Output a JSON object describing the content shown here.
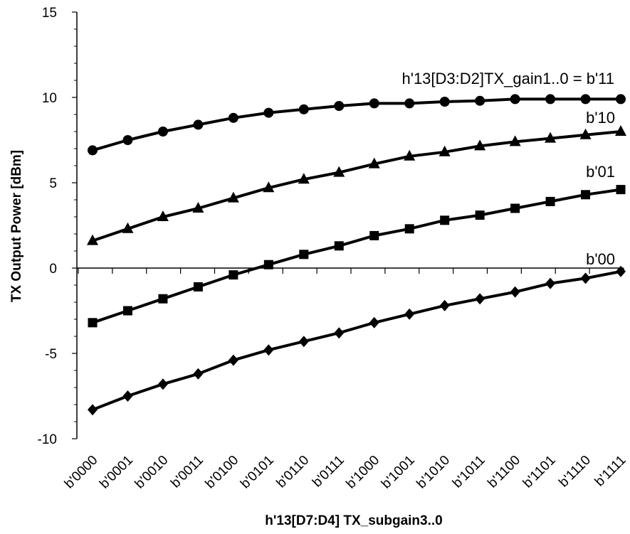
{
  "chart_data": {
    "type": "line",
    "title": "",
    "xlabel": "h'13[D7:D4] TX_subgain3..0",
    "ylabel": "TX Output Power [dBm]",
    "ylim": [
      -10,
      15
    ],
    "yticks": [
      -10,
      -5,
      0,
      5,
      10,
      15
    ],
    "grid": false,
    "legend": "none",
    "categories": [
      "b'0000",
      "b'0001",
      "b'0010",
      "b'0011",
      "b'0100",
      "b'0101",
      "b'0110",
      "b'0111",
      "b'1000",
      "b'1001",
      "b'1010",
      "b'1011",
      "b'1100",
      "b'1101",
      "b'1110",
      "b'1111"
    ],
    "series": [
      {
        "name": "h'13[D3:D2]TX_gain1..0 = b'11",
        "marker": "circle",
        "values": [
          6.9,
          7.5,
          8.0,
          8.4,
          8.8,
          9.1,
          9.3,
          9.5,
          9.65,
          9.65,
          9.75,
          9.8,
          9.9,
          9.9,
          9.9,
          9.9
        ]
      },
      {
        "name": "b'10",
        "marker": "triangle",
        "values": [
          1.6,
          2.3,
          3.0,
          3.5,
          4.1,
          4.7,
          5.2,
          5.6,
          6.1,
          6.55,
          6.8,
          7.15,
          7.4,
          7.6,
          7.8,
          8.0
        ]
      },
      {
        "name": "b'01",
        "marker": "square",
        "values": [
          -3.2,
          -2.5,
          -1.8,
          -1.1,
          -0.4,
          0.2,
          0.8,
          1.3,
          1.9,
          2.3,
          2.8,
          3.1,
          3.5,
          3.9,
          4.3,
          4.6
        ]
      },
      {
        "name": "b'00",
        "marker": "diamond",
        "values": [
          -8.3,
          -7.5,
          -6.8,
          -6.2,
          -5.4,
          -4.8,
          -4.3,
          -3.8,
          -3.2,
          -2.7,
          -2.2,
          -1.8,
          -1.4,
          -0.9,
          -0.6,
          -0.2
        ]
      }
    ],
    "line_color": "#000000"
  }
}
